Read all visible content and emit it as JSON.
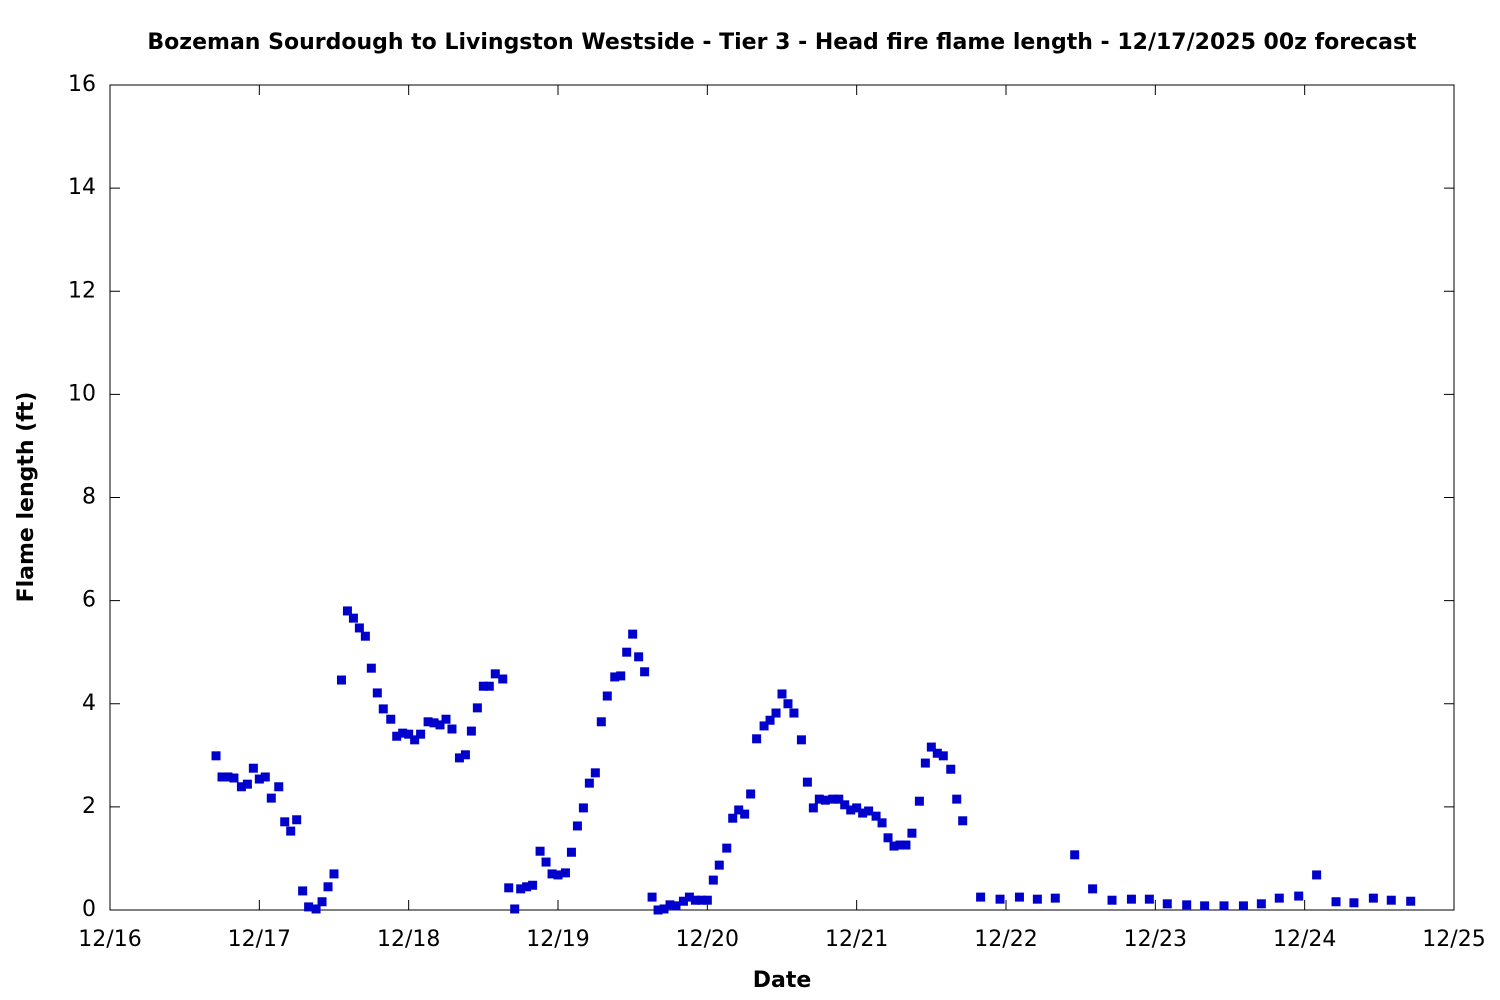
{
  "chart_data": {
    "type": "scatter",
    "title": "Bozeman Sourdough to Livingston Westside - Tier 3 - Head fire flame length - 12/17/2025 00z forecast",
    "xlabel": "Date",
    "ylabel": "Flame length (ft)",
    "color": "#0000cc",
    "xlim": [
      16,
      25
    ],
    "xticks": [
      {
        "value": 16,
        "label": "12/16"
      },
      {
        "value": 17,
        "label": "12/17"
      },
      {
        "value": 18,
        "label": "12/18"
      },
      {
        "value": 19,
        "label": "12/19"
      },
      {
        "value": 20,
        "label": "12/20"
      },
      {
        "value": 21,
        "label": "12/21"
      },
      {
        "value": 22,
        "label": "12/22"
      },
      {
        "value": 23,
        "label": "12/23"
      },
      {
        "value": 24,
        "label": "12/24"
      },
      {
        "value": 25,
        "label": "12/25"
      }
    ],
    "ylim": [
      0,
      16
    ],
    "yticks": [
      0,
      2,
      4,
      6,
      8,
      10,
      12,
      14,
      16
    ],
    "x": [
      16.71,
      16.75,
      16.79,
      16.83,
      16.88,
      16.92,
      16.96,
      17.0,
      17.04,
      17.08,
      17.13,
      17.17,
      17.21,
      17.25,
      17.29,
      17.33,
      17.38,
      17.42,
      17.46,
      17.5,
      17.55,
      17.59,
      17.63,
      17.67,
      17.71,
      17.75,
      17.79,
      17.83,
      17.88,
      17.92,
      17.96,
      18.0,
      18.04,
      18.08,
      18.13,
      18.17,
      18.21,
      18.25,
      18.29,
      18.34,
      18.38,
      18.42,
      18.46,
      18.5,
      18.54,
      18.58,
      18.63,
      18.67,
      18.71,
      18.75,
      18.79,
      18.83,
      18.88,
      18.92,
      18.96,
      19.0,
      19.05,
      19.09,
      19.13,
      19.17,
      19.21,
      19.25,
      19.29,
      19.33,
      19.38,
      19.42,
      19.46,
      19.5,
      19.54,
      19.58,
      19.63,
      19.67,
      19.71,
      19.75,
      19.79,
      19.84,
      19.88,
      19.92,
      19.96,
      20.0,
      20.04,
      20.08,
      20.13,
      20.17,
      20.21,
      20.25,
      20.29,
      20.33,
      20.38,
      20.42,
      20.46,
      20.5,
      20.54,
      20.58,
      20.63,
      20.67,
      20.71,
      20.75,
      20.79,
      20.84,
      20.88,
      20.92,
      20.96,
      21.0,
      21.04,
      21.08,
      21.13,
      21.17,
      21.21,
      21.25,
      21.29,
      21.33,
      21.37,
      21.42,
      21.46,
      21.5,
      21.54,
      21.58,
      21.63,
      21.67,
      21.71,
      21.83,
      21.96,
      22.09,
      22.21,
      22.33,
      22.46,
      22.58,
      22.71,
      22.84,
      22.96,
      23.08,
      23.21,
      23.33,
      23.46,
      23.59,
      23.71,
      23.83,
      23.96,
      24.08,
      24.21,
      24.33,
      24.46,
      24.58,
      24.71
    ],
    "values": [
      2.99,
      2.58,
      2.58,
      2.56,
      2.39,
      2.44,
      2.75,
      2.54,
      2.58,
      2.17,
      2.39,
      1.71,
      1.53,
      1.75,
      0.37,
      0.06,
      0.02,
      0.16,
      0.45,
      0.7,
      4.46,
      5.8,
      5.66,
      5.47,
      5.31,
      4.69,
      4.21,
      3.9,
      3.7,
      3.37,
      3.43,
      3.41,
      3.3,
      3.41,
      3.65,
      3.63,
      3.59,
      3.7,
      3.51,
      2.95,
      3.01,
      3.47,
      3.92,
      4.34,
      4.34,
      4.58,
      4.48,
      0.43,
      0.02,
      0.41,
      0.45,
      0.48,
      1.14,
      0.93,
      0.7,
      0.68,
      0.72,
      1.12,
      1.63,
      1.98,
      2.46,
      2.66,
      3.65,
      4.15,
      4.52,
      4.54,
      5.0,
      5.35,
      4.91,
      4.62,
      0.25,
      0.0,
      0.02,
      0.1,
      0.08,
      0.17,
      0.25,
      0.19,
      0.19,
      0.19,
      0.58,
      0.87,
      1.2,
      1.78,
      1.94,
      1.86,
      2.25,
      3.32,
      3.57,
      3.68,
      3.82,
      4.19,
      4.0,
      3.82,
      3.3,
      2.48,
      1.98,
      2.15,
      2.13,
      2.15,
      2.15,
      2.04,
      1.94,
      1.98,
      1.88,
      1.92,
      1.82,
      1.69,
      1.4,
      1.24,
      1.26,
      1.26,
      1.49,
      2.11,
      2.85,
      3.16,
      3.04,
      2.99,
      2.73,
      2.15,
      1.73,
      0.25,
      0.21,
      0.25,
      0.21,
      0.23,
      1.07,
      0.41,
      0.19,
      0.21,
      0.21,
      0.12,
      0.1,
      0.08,
      0.08,
      0.08,
      0.12,
      0.23,
      0.27,
      0.68,
      0.16,
      0.14,
      0.23,
      0.19,
      0.17
    ]
  }
}
